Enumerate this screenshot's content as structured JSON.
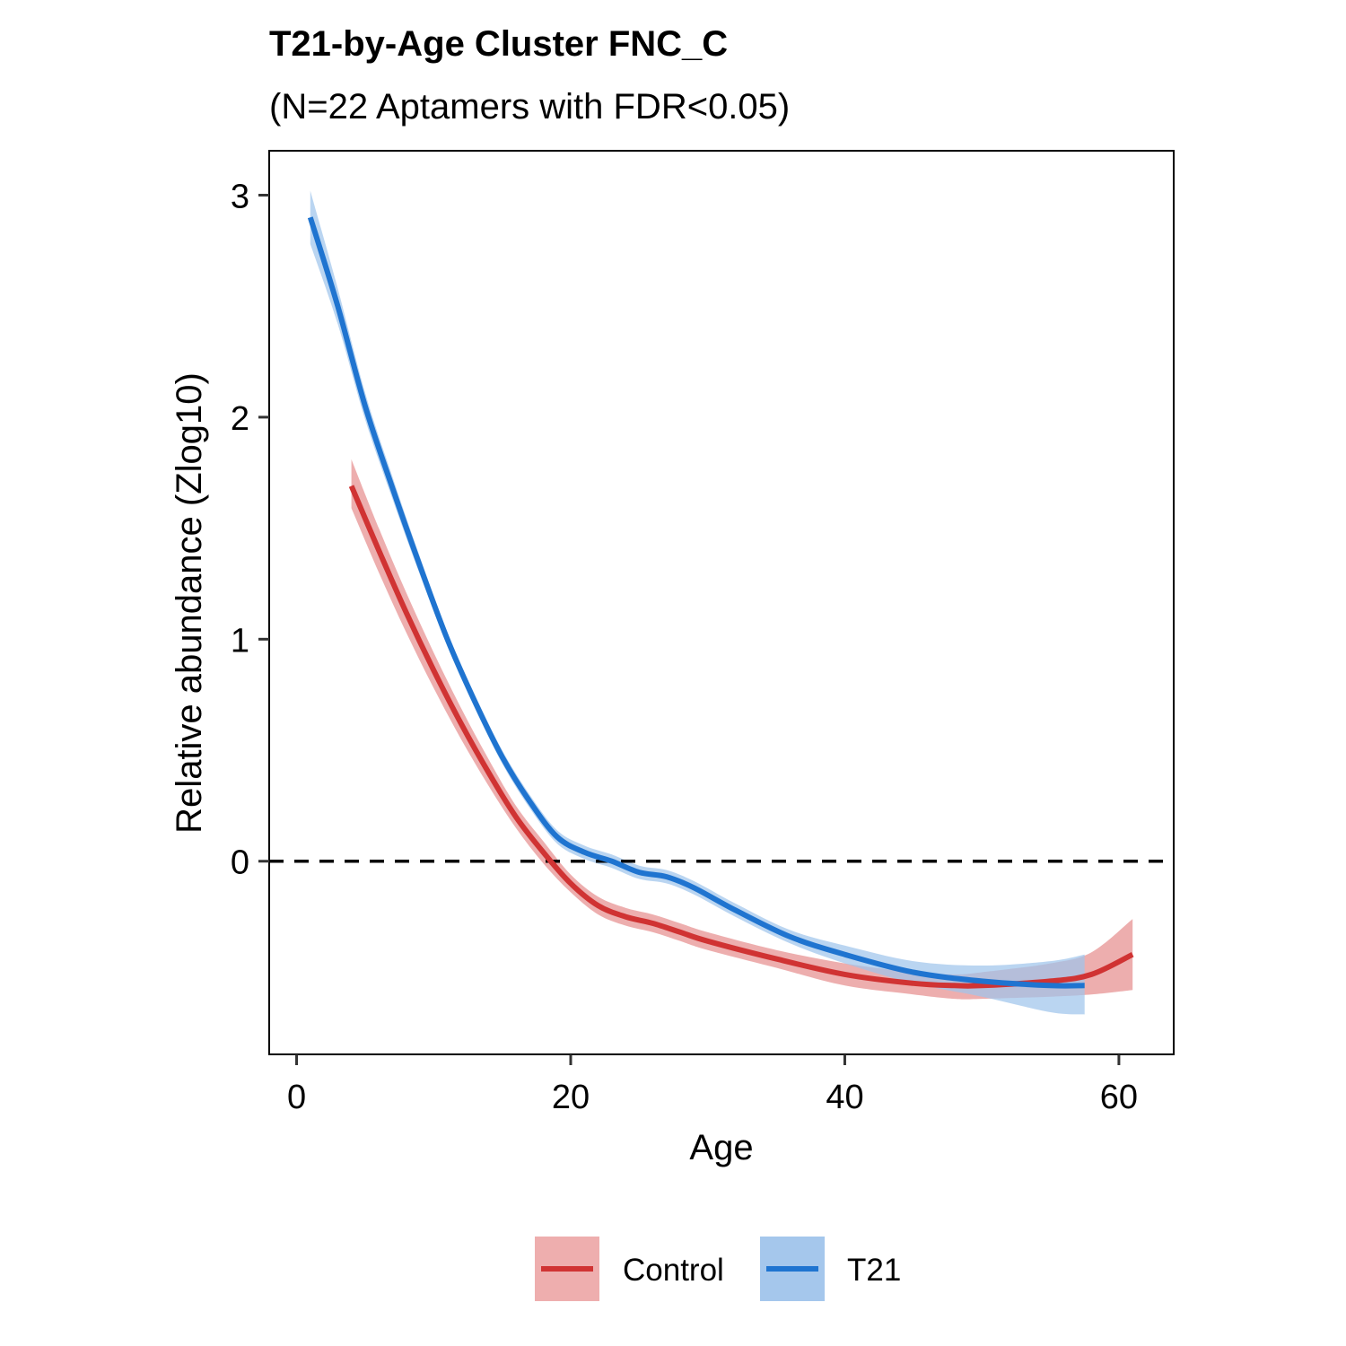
{
  "chart_data": {
    "type": "line",
    "title": "T21-by-Age Cluster FNC_C",
    "subtitle": "(N=22 Aptamers with FDR<0.05)",
    "xlabel": "Age",
    "ylabel": "Relative abundance (Zlog10)",
    "xlim": [
      -2,
      64
    ],
    "ylim": [
      -0.87,
      3.2
    ],
    "x_ticks": [
      0,
      20,
      40,
      60
    ],
    "x_tick_labels": [
      "0",
      "20",
      "40",
      "60"
    ],
    "y_ticks": [
      0,
      1,
      2,
      3
    ],
    "y_tick_labels": [
      "0",
      "1",
      "2",
      "3"
    ],
    "reference_line": {
      "y": 0,
      "style": "dashed"
    },
    "grid": false,
    "legend_position": "bottom",
    "series": [
      {
        "name": "Control",
        "color": "#D03333",
        "band_color": "#E89A9A",
        "x": [
          4,
          6,
          8,
          10,
          12,
          14,
          16,
          18,
          20,
          22,
          24,
          26,
          28,
          30,
          35,
          40,
          45,
          48,
          50,
          55,
          58,
          61
        ],
        "y": [
          1.69,
          1.4,
          1.12,
          0.86,
          0.62,
          0.4,
          0.2,
          0.04,
          -0.1,
          -0.2,
          -0.25,
          -0.28,
          -0.32,
          -0.36,
          -0.44,
          -0.51,
          -0.55,
          -0.56,
          -0.56,
          -0.54,
          -0.51,
          -0.42
        ],
        "lower": [
          1.59,
          1.3,
          1.03,
          0.78,
          0.55,
          0.34,
          0.15,
          -0.01,
          -0.14,
          -0.24,
          -0.29,
          -0.32,
          -0.36,
          -0.4,
          -0.48,
          -0.56,
          -0.6,
          -0.62,
          -0.62,
          -0.61,
          -0.6,
          -0.58
        ],
        "upper": [
          1.81,
          1.5,
          1.21,
          0.94,
          0.69,
          0.46,
          0.25,
          0.09,
          -0.06,
          -0.16,
          -0.21,
          -0.24,
          -0.28,
          -0.32,
          -0.4,
          -0.46,
          -0.5,
          -0.51,
          -0.5,
          -0.46,
          -0.41,
          -0.26
        ]
      },
      {
        "name": "T21",
        "color": "#1F74D0",
        "band_color": "#A0C5EC",
        "x": [
          1,
          3,
          5,
          7,
          9,
          11,
          13,
          15,
          17,
          19,
          21,
          23,
          25,
          27,
          29,
          32,
          36,
          40,
          45,
          50,
          55,
          57.5
        ],
        "y": [
          2.9,
          2.5,
          2.05,
          1.68,
          1.33,
          1.0,
          0.72,
          0.47,
          0.27,
          0.11,
          0.04,
          0.0,
          -0.05,
          -0.07,
          -0.12,
          -0.22,
          -0.34,
          -0.42,
          -0.5,
          -0.54,
          -0.56,
          -0.56
        ],
        "lower": [
          2.78,
          2.42,
          1.99,
          1.63,
          1.29,
          0.97,
          0.69,
          0.44,
          0.24,
          0.08,
          0.01,
          -0.03,
          -0.08,
          -0.1,
          -0.15,
          -0.25,
          -0.37,
          -0.46,
          -0.55,
          -0.61,
          -0.68,
          -0.69
        ],
        "upper": [
          3.02,
          2.58,
          2.11,
          1.73,
          1.37,
          1.03,
          0.75,
          0.5,
          0.3,
          0.14,
          0.07,
          0.03,
          -0.02,
          -0.04,
          -0.09,
          -0.19,
          -0.31,
          -0.38,
          -0.45,
          -0.47,
          -0.45,
          -0.42
        ]
      }
    ]
  }
}
